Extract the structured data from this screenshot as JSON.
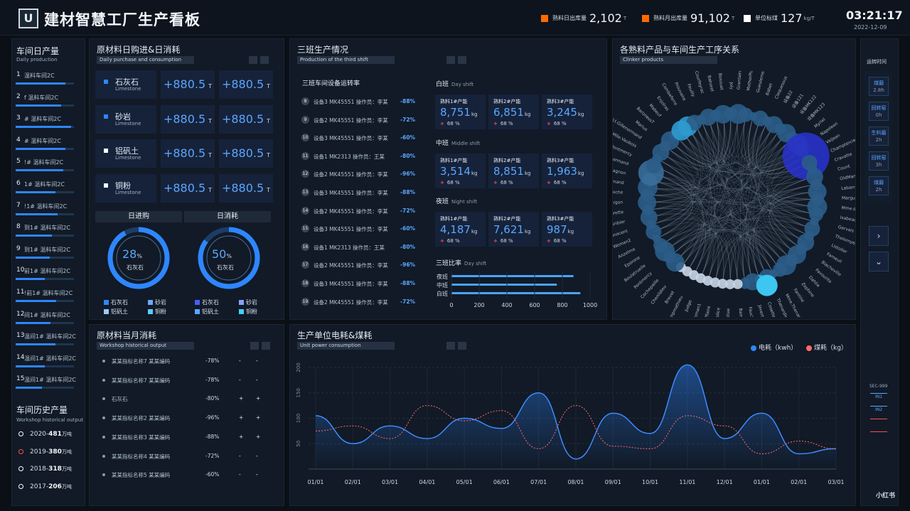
{
  "header": {
    "logo": "U",
    "title": "建材智慧工厂生产看板",
    "stats": [
      {
        "label": "熟料日出库量",
        "value": "2,102",
        "unit": "T",
        "color": "#ff6a00"
      },
      {
        "label": "熟料月出库量",
        "value": "91,102",
        "unit": "T",
        "color": "#ff6a00"
      },
      {
        "label": "单位标煤",
        "value": "127",
        "unit": "kg/T",
        "color": "#ffffff"
      }
    ],
    "time": "03:21:17",
    "date": "2022-12-09"
  },
  "daily": {
    "title": "车间日产量",
    "subtitle": "Daily production",
    "rows": [
      {
        "n": "1",
        "t": "温料车间2C",
        "p": 0.85
      },
      {
        "n": "2",
        "t": "f 温料车间2C",
        "p": 0.78
      },
      {
        "n": "3",
        "t": "# 温料车间2C",
        "p": 0.95
      },
      {
        "n": "4",
        "t": "# 温料车间2C",
        "p": 0.85
      },
      {
        "n": "5",
        "t": "!# 温料车间2C",
        "p": 0.82
      },
      {
        "n": "6",
        "t": "1# 温料车间2C",
        "p": 0.68
      },
      {
        "n": "7",
        "t": "!1# 温料车间2C",
        "p": 0.72
      },
      {
        "n": "8",
        "t": "到1# 温料车间2C",
        "p": 0.62
      },
      {
        "n": "9",
        "t": "到1# 温料车间2C",
        "p": 0.58
      },
      {
        "n": "10",
        "t": "前1# 温料车间2C",
        "p": 0.5
      },
      {
        "n": "11",
        "t": "!前1# 温料车间2C",
        "p": 0.7
      },
      {
        "n": "12",
        "t": "间1# 温料车间2C",
        "p": 0.6
      },
      {
        "n": "13",
        "t": "温间1# 温料车间2C",
        "p": 0.68
      },
      {
        "n": "14",
        "t": "温间1# 温料车间2C",
        "p": 0.5
      },
      {
        "n": "15",
        "t": "温间1# 温料车间2C",
        "p": 0.45
      }
    ]
  },
  "history": {
    "title": "车间历史产量",
    "subtitle": "Workshop historical output",
    "items": [
      {
        "year": "2020-",
        "val": "481",
        "unit": "万吨"
      },
      {
        "year": "2019-",
        "val": "380",
        "unit": "万吨"
      },
      {
        "year": "2018-",
        "val": "318",
        "unit": "万吨"
      },
      {
        "year": "2017-",
        "val": "206",
        "unit": "万吨"
      }
    ]
  },
  "materials": {
    "title": "原材料日购进&日消耗",
    "subtitle": "Daily purchase and consumption",
    "rows": [
      {
        "cn": "石灰石",
        "en": "Limestone",
        "a": "+880.5",
        "b": "+880.5",
        "u": "T"
      },
      {
        "cn": "砂岩",
        "en": "Limestone",
        "a": "+880.5",
        "b": "+880.5",
        "u": "T"
      },
      {
        "cn": "铝矾土",
        "en": "Limestone",
        "a": "+880.5",
        "b": "+880.5",
        "u": "T"
      },
      {
        "cn": "铜粉",
        "en": "Limestone",
        "a": "+880.5",
        "b": "+880.5",
        "u": "T"
      }
    ],
    "purchase_title": "日进购",
    "consume_title": "日消耗",
    "purchase_pct": "28",
    "consume_pct": "50",
    "pct_unit": "%",
    "gauge_label": "石灰石",
    "legend": [
      "石灰石",
      "砂岩",
      "铝矾土",
      "铜粉"
    ]
  },
  "shift3": {
    "title": "三班生产情况",
    "subtitle": "Production of the third shift",
    "equip_title": "三班车间设备运转率",
    "equip": [
      {
        "n": "8",
        "d": "设备3 MK45551 操作员：李某",
        "p": "-88%"
      },
      {
        "n": "9",
        "d": "设备2 MK45551 操作员：李某",
        "p": "-72%"
      },
      {
        "n": "10",
        "d": "设备3 MK45551 操作员：李某",
        "p": "-60%"
      },
      {
        "n": "11",
        "d": "设备1 MK2313 操作员：王某",
        "p": "-80%"
      },
      {
        "n": "12",
        "d": "设备2 MK45551 操作员：李某",
        "p": "-96%"
      },
      {
        "n": "13",
        "d": "设备3 MK45551 操作员：李某",
        "p": "-88%"
      },
      {
        "n": "14",
        "d": "设备2 MK45551 操作员：李某",
        "p": "-72%"
      },
      {
        "n": "15",
        "d": "设备3 MK45551 操作员：李某",
        "p": "-60%"
      },
      {
        "n": "16",
        "d": "设备1 MK2313 操作员：王某",
        "p": "-80%"
      },
      {
        "n": "17",
        "d": "设备2 MK45551 操作员：李某",
        "p": "-96%"
      },
      {
        "n": "18",
        "d": "设备3 MK45551 操作员：李某",
        "p": "-88%"
      },
      {
        "n": "19",
        "d": "设备2 MK45551 操作员：李某",
        "p": "-72%"
      }
    ],
    "shifts": [
      {
        "cn": "白班",
        "en": "Day shift",
        "cards": [
          {
            "l": "熟料1#产能",
            "v": "8,751",
            "u": "kg",
            "p": "68 %"
          },
          {
            "l": "熟料2#产能",
            "v": "6,851",
            "u": "kg",
            "p": "68 %"
          },
          {
            "l": "熟料3#产能",
            "v": "3,245",
            "u": "kg",
            "p": "68 %"
          }
        ]
      },
      {
        "cn": "中班",
        "en": "Middle shift",
        "cards": [
          {
            "l": "熟料1#产能",
            "v": "3,514",
            "u": "kg",
            "p": "68 %"
          },
          {
            "l": "熟料2#产能",
            "v": "8,851",
            "u": "kg",
            "p": "68 %"
          },
          {
            "l": "熟料3#产能",
            "v": "1,963",
            "u": "kg",
            "p": "68 %"
          }
        ]
      },
      {
        "cn": "夜班",
        "en": "Night shift",
        "cards": [
          {
            "l": "熟料1#产能",
            "v": "4,187",
            "u": "kg",
            "p": "68 %"
          },
          {
            "l": "熟料2#产能",
            "v": "7,621",
            "u": "kg",
            "p": "68 %"
          },
          {
            "l": "熟料3#产能",
            "v": "987",
            "u": "kg",
            "p": "68 %"
          }
        ]
      }
    ],
    "ratio_cn": "三班比率",
    "ratio_en": "Day shift",
    "ratio": {
      "categories": [
        "夜班",
        "中班",
        "白班"
      ],
      "values": [
        880,
        760,
        930
      ],
      "ticks": [
        "0",
        "200",
        "400",
        "600",
        "800",
        "1000"
      ],
      "max": 1000
    }
  },
  "relation": {
    "title": "各熟料产品与车间生产工序关系",
    "subtitle": "Clinker products",
    "labels": [
      "Combeferre",
      "Prouvaire",
      "Feuilly",
      "Courfeyrac",
      "Bahorel",
      "Bossuet",
      "Joly",
      "Grantaire",
      "MotherPlutarch",
      "Gueulemer",
      "Babet",
      "Claquesous",
      "设备22",
      "设备121",
      "设备MK122",
      "设备MK123",
      "Myriel",
      "Napoleon",
      "Valjean",
      "Champtercier",
      "Cravatte",
      "Count",
      "OldMan",
      "Labarre",
      "Marguerite",
      "Mme.deR",
      "Isabeau",
      "Gervais",
      "Tholomyes",
      "Listolier",
      "Fameuil",
      "Blacheville",
      "Favourite",
      "Dahlia",
      "Zephine",
      "Fantine",
      "Mme.Thenardier",
      "Thenardier",
      "Cosette",
      "Javert",
      "Fauchelevent",
      "Bamatabois",
      "Perpetue",
      "Simplice",
      "Scaufflaire",
      "Woman1",
      "Judge",
      "Champmathieu",
      "Brevet",
      "Chenildieu",
      "Cochepaille",
      "Pontmercy",
      "Boulatruelle",
      "Eponine",
      "Anzelma",
      "Woman2",
      "MotherInnocent",
      "Gribier",
      "Jondrette",
      "Mme.Burgon",
      "Gavroche",
      "Gillenormand",
      "Magnon",
      "Mlle.Gillenormand",
      "Mme.Pontmercy",
      "Mlle.Vaubois",
      "Lt.Gillenormand",
      "Marius",
      "BaronessT",
      "Mabeuf",
      "Enjolras"
    ]
  },
  "energy": {
    "title": "生产单位电耗&煤耗",
    "subtitle": "Unit power consumption",
    "legend": [
      "电耗（kwh）",
      "煤耗（kg）"
    ],
    "categories": [
      "01/01",
      "02/01",
      "03/01",
      "04/01",
      "05/01",
      "06/01",
      "07/01",
      "08/01",
      "09/01",
      "10/01",
      "11/01",
      "12/01",
      "01/01",
      "02/01",
      "03/01"
    ],
    "series": [
      {
        "name": "电耗（kwh）",
        "values": [
          105,
          50,
          85,
          60,
          100,
          80,
          150,
          20,
          110,
          70,
          205,
          60,
          110,
          30,
          40
        ]
      },
      {
        "name": "煤耗（kg）",
        "values": [
          75,
          85,
          60,
          125,
          95,
          115,
          40,
          125,
          45,
          40,
          105,
          85,
          30,
          55,
          40
        ]
      }
    ],
    "yticks": [
      "200",
      "150",
      "100",
      "50"
    ],
    "ymax": 200
  },
  "monthly": {
    "title": "原材料当月消耗",
    "subtitle": "Workshop historical output",
    "rows": [
      {
        "n": "某某指标名称7 某某编码",
        "p": "-78%",
        "a": "-",
        "b": "-"
      },
      {
        "n": "某某指标名称7 某某编码",
        "p": "-78%",
        "a": "-",
        "b": "-"
      },
      {
        "n": "石灰石",
        "p": "-80%",
        "a": "+",
        "b": "+"
      },
      {
        "n": "某某指标名称2 某某编码",
        "p": "-96%",
        "a": "+",
        "b": "+"
      },
      {
        "n": "某某指标名称3 某某编码",
        "p": "-88%",
        "a": "+",
        "b": "+"
      },
      {
        "n": "某某指标名称4 某某编码",
        "p": "-72%",
        "a": "-",
        "b": "-"
      },
      {
        "n": "某某指标名称5 某某编码",
        "p": "-60%",
        "a": "-",
        "b": "-"
      }
    ]
  },
  "right": {
    "title": "运转时间",
    "buttons": [
      {
        "a": "煤磨",
        "b": "2.8h"
      },
      {
        "a": "回转窑",
        "b": "0h"
      },
      {
        "a": "生料磨",
        "b": "2h"
      },
      {
        "a": "回转窑",
        "b": "3h"
      },
      {
        "a": "煤磨",
        "b": "2h"
      }
    ],
    "next": "›",
    "down": "⌄",
    "sec": "SEC-999",
    "sig": [
      "IN1",
      "IN2",
      "",
      ""
    ]
  },
  "watermark": "小红书"
}
